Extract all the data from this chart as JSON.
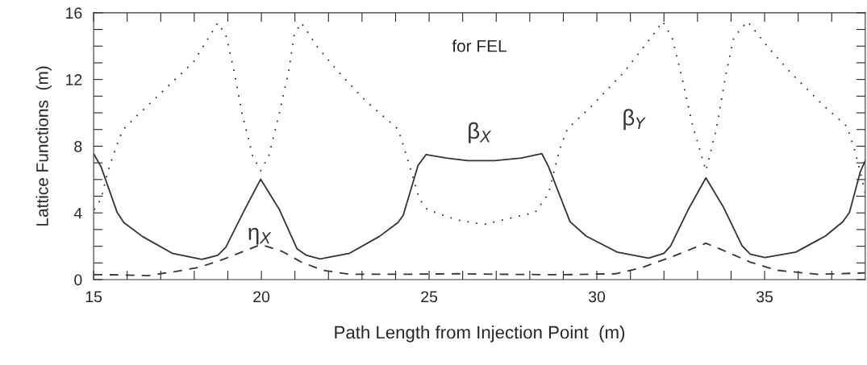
{
  "chart_data": {
    "type": "line",
    "xlabel": "Path Length from Injection Point  (m)",
    "ylabel": "Lattice Functions  (m)",
    "annotations": [
      "for FEL"
    ],
    "xlim": [
      15,
      38
    ],
    "ylim": [
      0,
      16
    ],
    "xticks": [
      15,
      {
        "value": 16,
        "label": null
      },
      {
        "value": 17,
        "label": null
      },
      {
        "value": 18,
        "label": null
      },
      {
        "value": 19,
        "label": null
      },
      20,
      {
        "value": 21,
        "label": null
      },
      {
        "value": 22,
        "label": null
      },
      {
        "value": 23,
        "label": null
      },
      {
        "value": 24,
        "label": null
      },
      25,
      {
        "value": 26,
        "label": null
      },
      {
        "value": 27,
        "label": null
      },
      {
        "value": 28,
        "label": null
      },
      {
        "value": 29,
        "label": null
      },
      30,
      {
        "value": 31,
        "label": null
      },
      {
        "value": 32,
        "label": null
      },
      {
        "value": 33,
        "label": null
      },
      {
        "value": 34,
        "label": null
      },
      35,
      {
        "value": 36,
        "label": null
      },
      {
        "value": 37,
        "label": null
      }
    ],
    "yticks": [
      0,
      {
        "value": 1,
        "label": null
      },
      {
        "value": 2,
        "label": null
      },
      {
        "value": 3,
        "label": null
      },
      4,
      {
        "value": 5,
        "label": null
      },
      {
        "value": 6,
        "label": null
      },
      {
        "value": 7,
        "label": null
      },
      8,
      {
        "value": 9,
        "label": null
      },
      {
        "value": 10,
        "label": null
      },
      {
        "value": 11,
        "label": null
      },
      12,
      {
        "value": 13,
        "label": null
      },
      {
        "value": 14,
        "label": null
      },
      {
        "value": 15,
        "label": null
      },
      16
    ],
    "grid": false,
    "legend": false,
    "marker": "none",
    "series": [
      {
        "name": "β$_{X}$",
        "color": "#333333",
        "line_style": "solid",
        "x": [
          15,
          15.22,
          15.7,
          15.9,
          16.46,
          17.34,
          18.22,
          18.7,
          18.94,
          19.5,
          19.98,
          20.54,
          21.06,
          21.35,
          21.75,
          22.63,
          23.51,
          24.07,
          24.23,
          24.67,
          24.91,
          25.51,
          26.15,
          26.63,
          26.95,
          27.75,
          28.36,
          28.56,
          29.2,
          29.68,
          30.6,
          31.54,
          32.0,
          32.2,
          32.72,
          33.25,
          33.77,
          34.33,
          34.57,
          35.01,
          35.93,
          36.81,
          37.33,
          37.53,
          37.85,
          38.0
        ],
        "values": [
          7.55,
          6.77,
          4.03,
          3.42,
          2.58,
          1.58,
          1.21,
          1.45,
          1.94,
          4.19,
          6.02,
          4.19,
          1.85,
          1.45,
          1.24,
          1.58,
          2.58,
          3.42,
          3.87,
          6.85,
          7.5,
          7.29,
          7.13,
          7.13,
          7.13,
          7.29,
          7.55,
          6.77,
          3.47,
          2.61,
          1.65,
          1.29,
          1.58,
          2.02,
          4.19,
          6.1,
          4.35,
          2.02,
          1.53,
          1.32,
          1.65,
          2.61,
          3.47,
          4.03,
          6.45,
          7.13
        ]
      },
      {
        "name": "β$_{Y}$",
        "color": "#333333",
        "line_style": "dotted",
        "x": [
          15.02,
          15.22,
          15.42,
          15.66,
          15.86,
          16.3,
          17.02,
          17.98,
          18.7,
          18.94,
          19.18,
          19.42,
          19.74,
          19.98,
          20.22,
          20.54,
          20.82,
          20.98,
          21.19,
          21.67,
          22.31,
          23.1,
          24.07,
          24.23,
          24.47,
          24.71,
          24.95,
          25.83,
          26.63,
          28.16,
          28.56,
          28.88,
          29.12,
          29.84,
          30.8,
          31.68,
          31.96,
          32.24,
          32.52,
          32.84,
          33.25,
          33.56,
          33.84,
          34.08,
          34.49,
          35.13,
          35.77,
          36.73,
          37.45,
          37.69,
          37.93,
          38.0
        ],
        "values": [
          4.19,
          4.84,
          6.45,
          7.9,
          8.95,
          9.84,
          11.21,
          13.06,
          15.4,
          14.68,
          12.58,
          10.0,
          7.42,
          6.53,
          7.42,
          10.0,
          12.58,
          14.68,
          15.4,
          13.95,
          12.42,
          10.73,
          9.03,
          8.06,
          6.45,
          4.84,
          4.19,
          3.58,
          3.31,
          4.03,
          5.16,
          7.74,
          9.03,
          10.4,
          12.42,
          14.68,
          15.48,
          14.52,
          12.26,
          9.35,
          6.53,
          9.03,
          12.26,
          14.52,
          15.48,
          13.87,
          12.42,
          10.48,
          9.19,
          7.74,
          5.8,
          5.16
        ]
      },
      {
        "name": "η$_{X}$",
        "color": "#333333",
        "line_style": "dashed",
        "x": [
          15,
          15.5,
          16.62,
          17.42,
          18.14,
          18.86,
          19.98,
          20.62,
          21.19,
          21.83,
          22.63,
          24.23,
          25.83,
          26.95,
          28.96,
          30.56,
          31.36,
          32.24,
          33.25,
          33.84,
          34.57,
          35.37,
          36.57,
          38.0
        ],
        "values": [
          0.3,
          0.29,
          0.24,
          0.48,
          0.73,
          1.21,
          2.1,
          1.69,
          1.05,
          0.56,
          0.32,
          0.32,
          0.35,
          0.32,
          0.29,
          0.35,
          0.73,
          1.37,
          2.18,
          1.69,
          1.05,
          0.56,
          0.32,
          0.4
        ]
      }
    ]
  }
}
